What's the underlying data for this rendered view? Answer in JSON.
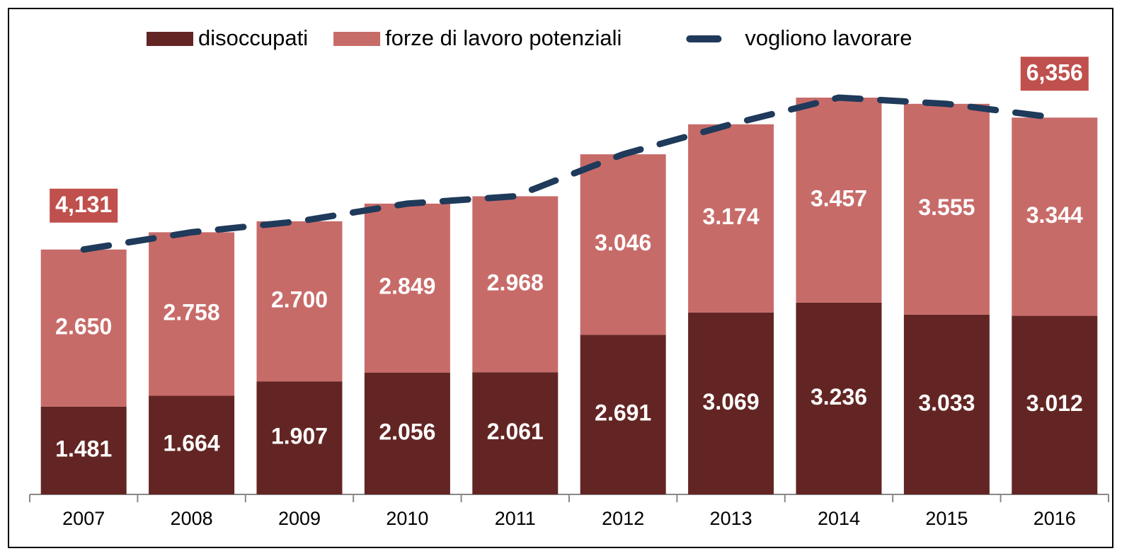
{
  "chart_data": {
    "type": "bar",
    "stacked": true,
    "categories": [
      "2007",
      "2008",
      "2009",
      "2010",
      "2011",
      "2012",
      "2013",
      "2014",
      "2015",
      "2016"
    ],
    "series": [
      {
        "name": "disoccupati",
        "color": "#632523",
        "values": [
          1.481,
          1.664,
          1.907,
          2.056,
          2.061,
          2.691,
          3.069,
          3.236,
          3.033,
          3.012
        ],
        "value_labels": [
          "1.481",
          "1.664",
          "1.907",
          "2.056",
          "2.061",
          "2.691",
          "3.069",
          "3.236",
          "3.033",
          "3.012"
        ]
      },
      {
        "name": "forze di lavoro potenziali",
        "color": "#c76b69",
        "values": [
          2.65,
          2.758,
          2.7,
          2.849,
          2.968,
          3.046,
          3.174,
          3.457,
          3.555,
          3.344
        ],
        "value_labels": [
          "2.650",
          "2.758",
          "2.700",
          "2.849",
          "2.968",
          "3.046",
          "3.174",
          "3.457",
          "3.555",
          "3.344"
        ]
      },
      {
        "name": "vogliono lavorare",
        "type": "line",
        "color": "#1f3a5a",
        "dashed": true,
        "values": [
          4.131,
          4.422,
          4.607,
          4.905,
          5.029,
          5.737,
          6.243,
          6.693,
          6.588,
          6.356
        ],
        "value_labels": [
          "4,131",
          null,
          null,
          null,
          null,
          null,
          null,
          null,
          null,
          "6,356"
        ]
      }
    ],
    "legend": "top"
  }
}
